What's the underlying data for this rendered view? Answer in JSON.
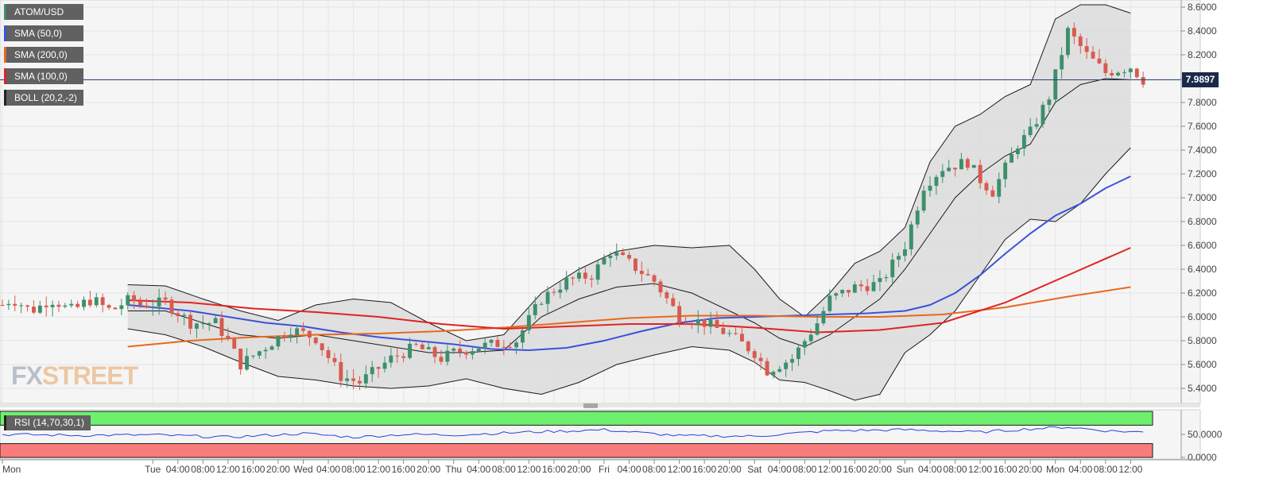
{
  "chart_data": [
    {
      "type": "candlestick",
      "symbol": "ATOM/USD",
      "last_price_label": "7.9897",
      "last_price": 7.9897,
      "ylim": [
        5.3,
        8.65
      ],
      "y_ticks": [
        "8.6000",
        "8.4000",
        "8.2000",
        "8.0000",
        "7.8000",
        "7.6000",
        "7.4000",
        "7.2000",
        "7.0000",
        "6.8000",
        "6.6000",
        "6.4000",
        "6.2000",
        "6.0000",
        "5.8000",
        "5.6000",
        "5.4000"
      ],
      "x_ticks": [
        "Mon",
        "Tue",
        "04:00",
        "08:00",
        "12:00",
        "16:00",
        "20:00",
        "Wed",
        "04:00",
        "08:00",
        "12:00",
        "16:00",
        "20:00",
        "Thu",
        "04:00",
        "08:00",
        "12:00",
        "16:00",
        "20:00",
        "Fri",
        "04:00",
        "08:00",
        "12:00",
        "16:00",
        "20:00",
        "Sat",
        "04:00",
        "08:00",
        "12:00",
        "16:00",
        "20:00",
        "Sun",
        "04:00",
        "08:00",
        "12:00",
        "16:00",
        "20:00",
        "Mon",
        "04:00",
        "08:00",
        "12:00"
      ],
      "x_tick_hours": [
        0,
        24,
        28,
        32,
        36,
        40,
        44,
        48,
        52,
        56,
        60,
        64,
        68,
        72,
        76,
        80,
        84,
        88,
        92,
        96,
        100,
        104,
        108,
        112,
        116,
        120,
        124,
        128,
        132,
        136,
        140,
        144,
        148,
        152,
        156,
        160,
        164,
        168,
        172,
        176,
        180
      ],
      "candle_interval_hours": 1,
      "candle_anchors": [
        {
          "h": 22,
          "p": 6.1
        },
        {
          "h": 26,
          "p": 6.12
        },
        {
          "h": 30,
          "p": 5.95
        },
        {
          "h": 34,
          "p": 5.95
        },
        {
          "h": 36,
          "p": 5.8
        },
        {
          "h": 38,
          "p": 5.6
        },
        {
          "h": 42,
          "p": 5.75
        },
        {
          "h": 46,
          "p": 5.9
        },
        {
          "h": 50,
          "p": 5.82
        },
        {
          "h": 54,
          "p": 5.5
        },
        {
          "h": 57,
          "p": 5.45
        },
        {
          "h": 62,
          "p": 5.65
        },
        {
          "h": 66,
          "p": 5.75
        },
        {
          "h": 70,
          "p": 5.65
        },
        {
          "h": 72,
          "p": 5.7
        },
        {
          "h": 76,
          "p": 5.75
        },
        {
          "h": 82,
          "p": 5.8
        },
        {
          "h": 86,
          "p": 6.15
        },
        {
          "h": 90,
          "p": 6.3
        },
        {
          "h": 94,
          "p": 6.35
        },
        {
          "h": 97,
          "p": 6.55
        },
        {
          "h": 100,
          "p": 6.45
        },
        {
          "h": 104,
          "p": 6.3
        },
        {
          "h": 108,
          "p": 6.0
        },
        {
          "h": 112,
          "p": 5.95
        },
        {
          "h": 116,
          "p": 5.85
        },
        {
          "h": 120,
          "p": 5.7
        },
        {
          "h": 122,
          "p": 5.55
        },
        {
          "h": 126,
          "p": 5.65
        },
        {
          "h": 130,
          "p": 5.95
        },
        {
          "h": 132,
          "p": 6.15
        },
        {
          "h": 136,
          "p": 6.25
        },
        {
          "h": 140,
          "p": 6.28
        },
        {
          "h": 144,
          "p": 6.6
        },
        {
          "h": 147,
          "p": 7.1
        },
        {
          "h": 150,
          "p": 7.25
        },
        {
          "h": 154,
          "p": 7.3
        },
        {
          "h": 156,
          "p": 7.15
        },
        {
          "h": 158,
          "p": 7.05
        },
        {
          "h": 162,
          "p": 7.45
        },
        {
          "h": 164,
          "p": 7.55
        },
        {
          "h": 167,
          "p": 7.85
        },
        {
          "h": 170,
          "p": 8.4
        },
        {
          "h": 173,
          "p": 8.2
        },
        {
          "h": 176,
          "p": 8.05
        },
        {
          "h": 180,
          "p": 8.1
        },
        {
          "h": 182,
          "p": 7.99
        }
      ],
      "indicators": [
        {
          "name": "SMA (50,0)",
          "color": "#3b52d9",
          "points": [
            {
              "h": 20,
              "p": 6.1
            },
            {
              "h": 24,
              "p": 6.08
            },
            {
              "h": 30,
              "p": 6.05
            },
            {
              "h": 36,
              "p": 6.0
            },
            {
              "h": 42,
              "p": 5.95
            },
            {
              "h": 48,
              "p": 5.92
            },
            {
              "h": 54,
              "p": 5.87
            },
            {
              "h": 60,
              "p": 5.83
            },
            {
              "h": 66,
              "p": 5.8
            },
            {
              "h": 72,
              "p": 5.77
            },
            {
              "h": 78,
              "p": 5.73
            },
            {
              "h": 84,
              "p": 5.72
            },
            {
              "h": 90,
              "p": 5.74
            },
            {
              "h": 96,
              "p": 5.8
            },
            {
              "h": 102,
              "p": 5.88
            },
            {
              "h": 108,
              "p": 5.95
            },
            {
              "h": 114,
              "p": 5.99
            },
            {
              "h": 120,
              "p": 6.0
            },
            {
              "h": 126,
              "p": 6.01
            },
            {
              "h": 132,
              "p": 6.02
            },
            {
              "h": 138,
              "p": 6.03
            },
            {
              "h": 144,
              "p": 6.05
            },
            {
              "h": 148,
              "p": 6.1
            },
            {
              "h": 152,
              "p": 6.2
            },
            {
              "h": 156,
              "p": 6.35
            },
            {
              "h": 160,
              "p": 6.53
            },
            {
              "h": 164,
              "p": 6.7
            },
            {
              "h": 168,
              "p": 6.85
            },
            {
              "h": 172,
              "p": 6.95
            },
            {
              "h": 176,
              "p": 7.08
            },
            {
              "h": 180,
              "p": 7.18
            }
          ]
        },
        {
          "name": "SMA (200,0)",
          "color": "#e8681e",
          "points": [
            {
              "h": 20,
              "p": 5.75
            },
            {
              "h": 30,
              "p": 5.8
            },
            {
              "h": 40,
              "p": 5.83
            },
            {
              "h": 50,
              "p": 5.85
            },
            {
              "h": 60,
              "p": 5.86
            },
            {
              "h": 70,
              "p": 5.88
            },
            {
              "h": 80,
              "p": 5.91
            },
            {
              "h": 90,
              "p": 5.95
            },
            {
              "h": 100,
              "p": 5.99
            },
            {
              "h": 110,
              "p": 6.01
            },
            {
              "h": 120,
              "p": 6.01
            },
            {
              "h": 130,
              "p": 6.0
            },
            {
              "h": 140,
              "p": 6.0
            },
            {
              "h": 150,
              "p": 6.02
            },
            {
              "h": 160,
              "p": 6.08
            },
            {
              "h": 170,
              "p": 6.17
            },
            {
              "h": 180,
              "p": 6.25
            }
          ]
        },
        {
          "name": "SMA (100,0)",
          "color": "#e32222",
          "points": [
            {
              "h": 20,
              "p": 6.14
            },
            {
              "h": 30,
              "p": 6.12
            },
            {
              "h": 40,
              "p": 6.07
            },
            {
              "h": 50,
              "p": 6.04
            },
            {
              "h": 60,
              "p": 6.0
            },
            {
              "h": 70,
              "p": 5.94
            },
            {
              "h": 80,
              "p": 5.9
            },
            {
              "h": 90,
              "p": 5.92
            },
            {
              "h": 100,
              "p": 5.94
            },
            {
              "h": 110,
              "p": 5.94
            },
            {
              "h": 120,
              "p": 5.91
            },
            {
              "h": 130,
              "p": 5.87
            },
            {
              "h": 140,
              "p": 5.89
            },
            {
              "h": 150,
              "p": 5.95
            },
            {
              "h": 160,
              "p": 6.12
            },
            {
              "h": 170,
              "p": 6.35
            },
            {
              "h": 180,
              "p": 6.58
            }
          ]
        }
      ],
      "bollinger": {
        "name": "BOLL (20,2,-2)",
        "upper": [
          {
            "h": 20,
            "p": 6.27
          },
          {
            "h": 26,
            "p": 6.26
          },
          {
            "h": 32,
            "p": 6.15
          },
          {
            "h": 38,
            "p": 6.05
          },
          {
            "h": 44,
            "p": 5.97
          },
          {
            "h": 50,
            "p": 6.1
          },
          {
            "h": 56,
            "p": 6.15
          },
          {
            "h": 62,
            "p": 6.12
          },
          {
            "h": 68,
            "p": 5.95
          },
          {
            "h": 74,
            "p": 5.8
          },
          {
            "h": 80,
            "p": 5.85
          },
          {
            "h": 86,
            "p": 6.2
          },
          {
            "h": 92,
            "p": 6.4
          },
          {
            "h": 98,
            "p": 6.55
          },
          {
            "h": 104,
            "p": 6.6
          },
          {
            "h": 110,
            "p": 6.58
          },
          {
            "h": 116,
            "p": 6.6
          },
          {
            "h": 120,
            "p": 6.4
          },
          {
            "h": 124,
            "p": 6.15
          },
          {
            "h": 128,
            "p": 6.0
          },
          {
            "h": 132,
            "p": 6.2
          },
          {
            "h": 136,
            "p": 6.45
          },
          {
            "h": 140,
            "p": 6.55
          },
          {
            "h": 144,
            "p": 6.75
          },
          {
            "h": 148,
            "p": 7.3
          },
          {
            "h": 152,
            "p": 7.6
          },
          {
            "h": 156,
            "p": 7.7
          },
          {
            "h": 160,
            "p": 7.85
          },
          {
            "h": 164,
            "p": 7.95
          },
          {
            "h": 168,
            "p": 8.5
          },
          {
            "h": 172,
            "p": 8.62
          },
          {
            "h": 176,
            "p": 8.62
          },
          {
            "h": 180,
            "p": 8.55
          }
        ],
        "middle": [
          {
            "h": 20,
            "p": 6.05
          },
          {
            "h": 26,
            "p": 6.05
          },
          {
            "h": 32,
            "p": 5.95
          },
          {
            "h": 38,
            "p": 5.85
          },
          {
            "h": 44,
            "p": 5.82
          },
          {
            "h": 50,
            "p": 5.85
          },
          {
            "h": 56,
            "p": 5.8
          },
          {
            "h": 62,
            "p": 5.75
          },
          {
            "h": 68,
            "p": 5.7
          },
          {
            "h": 74,
            "p": 5.7
          },
          {
            "h": 80,
            "p": 5.72
          },
          {
            "h": 86,
            "p": 6.0
          },
          {
            "h": 92,
            "p": 6.15
          },
          {
            "h": 98,
            "p": 6.25
          },
          {
            "h": 104,
            "p": 6.28
          },
          {
            "h": 110,
            "p": 6.2
          },
          {
            "h": 116,
            "p": 6.05
          },
          {
            "h": 120,
            "p": 5.95
          },
          {
            "h": 124,
            "p": 5.82
          },
          {
            "h": 128,
            "p": 5.75
          },
          {
            "h": 132,
            "p": 5.85
          },
          {
            "h": 136,
            "p": 6.0
          },
          {
            "h": 140,
            "p": 6.15
          },
          {
            "h": 144,
            "p": 6.4
          },
          {
            "h": 148,
            "p": 6.7
          },
          {
            "h": 152,
            "p": 7.0
          },
          {
            "h": 156,
            "p": 7.2
          },
          {
            "h": 160,
            "p": 7.35
          },
          {
            "h": 164,
            "p": 7.45
          },
          {
            "h": 168,
            "p": 7.8
          },
          {
            "h": 172,
            "p": 7.95
          },
          {
            "h": 176,
            "p": 8.0
          },
          {
            "h": 180,
            "p": 7.99
          }
        ],
        "lower": [
          {
            "h": 20,
            "p": 5.9
          },
          {
            "h": 26,
            "p": 5.85
          },
          {
            "h": 32,
            "p": 5.75
          },
          {
            "h": 38,
            "p": 5.62
          },
          {
            "h": 44,
            "p": 5.5
          },
          {
            "h": 50,
            "p": 5.47
          },
          {
            "h": 56,
            "p": 5.42
          },
          {
            "h": 62,
            "p": 5.4
          },
          {
            "h": 68,
            "p": 5.42
          },
          {
            "h": 74,
            "p": 5.48
          },
          {
            "h": 80,
            "p": 5.4
          },
          {
            "h": 86,
            "p": 5.35
          },
          {
            "h": 92,
            "p": 5.45
          },
          {
            "h": 98,
            "p": 5.6
          },
          {
            "h": 104,
            "p": 5.68
          },
          {
            "h": 110,
            "p": 5.75
          },
          {
            "h": 116,
            "p": 5.72
          },
          {
            "h": 120,
            "p": 5.62
          },
          {
            "h": 124,
            "p": 5.47
          },
          {
            "h": 128,
            "p": 5.45
          },
          {
            "h": 132,
            "p": 5.38
          },
          {
            "h": 136,
            "p": 5.3
          },
          {
            "h": 140,
            "p": 5.35
          },
          {
            "h": 144,
            "p": 5.7
          },
          {
            "h": 148,
            "p": 5.85
          },
          {
            "h": 152,
            "p": 6.05
          },
          {
            "h": 156,
            "p": 6.35
          },
          {
            "h": 160,
            "p": 6.65
          },
          {
            "h": 164,
            "p": 6.82
          },
          {
            "h": 168,
            "p": 6.8
          },
          {
            "h": 172,
            "p": 6.95
          },
          {
            "h": 176,
            "p": 7.2
          },
          {
            "h": 180,
            "p": 7.42
          }
        ]
      }
    },
    {
      "type": "line",
      "name": "RSI (14,70,30,1)",
      "ylim": [
        0,
        100
      ],
      "y_ticks": [
        "50.0000",
        "0.0000"
      ],
      "overbought_level": 70,
      "oversold_level": 30,
      "series": [
        {
          "name": "RSI (14,70,30,1)",
          "color": "#2e3ee0",
          "points": [
            {
              "h": 0,
              "p": 50
            },
            {
              "h": 12,
              "p": 48
            },
            {
              "h": 24,
              "p": 49
            },
            {
              "h": 36,
              "p": 44
            },
            {
              "h": 48,
              "p": 52
            },
            {
              "h": 56,
              "p": 44
            },
            {
              "h": 64,
              "p": 50
            },
            {
              "h": 72,
              "p": 49
            },
            {
              "h": 84,
              "p": 55
            },
            {
              "h": 96,
              "p": 60
            },
            {
              "h": 108,
              "p": 47
            },
            {
              "h": 120,
              "p": 46
            },
            {
              "h": 132,
              "p": 58
            },
            {
              "h": 144,
              "p": 60
            },
            {
              "h": 156,
              "p": 55
            },
            {
              "h": 164,
              "p": 62
            },
            {
              "h": 170,
              "p": 66
            },
            {
              "h": 176,
              "p": 58
            },
            {
              "h": 182,
              "p": 55
            }
          ]
        }
      ]
    }
  ],
  "watermark": {
    "part1": "FX",
    "part2": "STREET"
  },
  "colors": {
    "bull": "#3d8f6c",
    "bear": "#d85a4e",
    "rsi_overbought_zone": "#6ef06e",
    "rsi_oversold_zone": "#f87c7c",
    "price_line": "#2c3f7a",
    "band_fill": "#dcdcdc"
  }
}
